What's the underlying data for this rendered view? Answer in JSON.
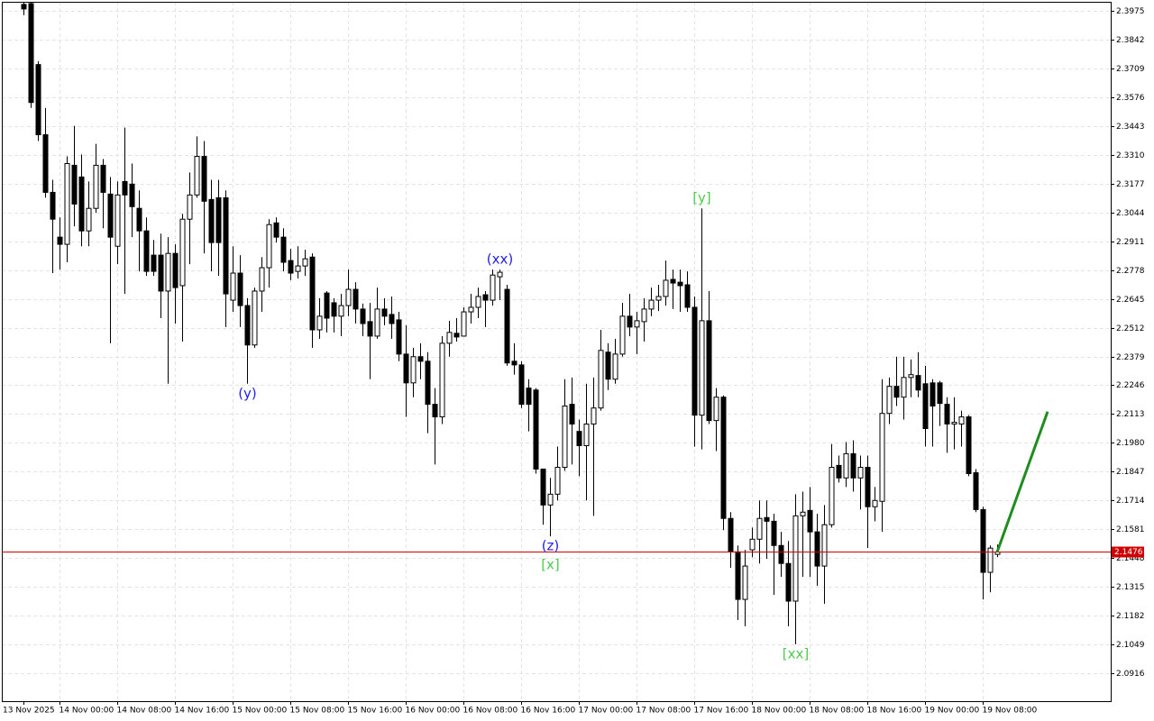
{
  "chart_data": {
    "type": "candlestick",
    "ylim": [
      2.0787,
      2.4017
    ],
    "yticks": [
      2.0916,
      2.1049,
      2.1182,
      2.1315,
      2.1448,
      2.1581,
      2.1714,
      2.1847,
      {
        "value": 2.198,
        "label": "2.1980"
      },
      2.2113,
      2.2246,
      2.2379,
      2.2512,
      2.2645,
      2.2778,
      2.2911,
      2.3044,
      2.3177,
      {
        "value": 2.331,
        "label": "2.3310"
      },
      2.3443,
      2.3576,
      2.3709,
      2.3842,
      2.3975
    ],
    "xticks": [
      {
        "value": 0,
        "label": "13 Nov 2025"
      },
      {
        "value": 5,
        "label": "14 Nov 00:00"
      },
      {
        "value": 13,
        "label": "14 Nov 08:00"
      },
      {
        "value": 21,
        "label": "14 Nov 16:00"
      },
      {
        "value": 29,
        "label": "15 Nov 00:00"
      },
      {
        "value": 37,
        "label": "15 Nov 08:00"
      },
      {
        "value": 45,
        "label": "15 Nov 16:00"
      },
      {
        "value": 53,
        "label": "16 Nov 00:00"
      },
      {
        "value": 61,
        "label": "16 Nov 08:00"
      },
      {
        "value": 69,
        "label": "16 Nov 16:00"
      },
      {
        "value": 77,
        "label": "17 Nov 00:00"
      },
      {
        "value": 85,
        "label": "17 Nov 08:00"
      },
      {
        "value": 93,
        "label": "17 Nov 16:00"
      },
      {
        "value": 101,
        "label": "18 Nov 00:00"
      },
      {
        "value": 109,
        "label": "18 Nov 08:00"
      },
      {
        "value": 117,
        "label": "18 Nov 16:00"
      },
      {
        "value": 125,
        "label": "19 Nov 00:00"
      },
      {
        "value": 133,
        "label": "19 Nov 08:00"
      }
    ],
    "grid": true,
    "up_color": "#ffffff",
    "down_color": "#000000",
    "open": [
      2.4005,
      2.4009,
      2.3727,
      2.3403,
      2.3137,
      2.293,
      2.2897,
      2.3262,
      2.3208,
      2.2959,
      2.3063,
      2.3262,
      2.3129,
      2.2888,
      2.3187,
      2.3175,
      2.3063,
      2.2959,
      2.2847,
      2.2847,
      2.2681,
      2.2855,
      2.2706,
      2.3013,
      2.3125,
      2.3303,
      2.3104,
      2.3112,
      2.3112,
      2.2639,
      2.2764,
      2.2614,
      2.2432,
      2.2681,
      2.2789,
      2.2996,
      2.293,
      2.2822,
      2.2772,
      2.2797,
      2.2838,
      2.2502,
      2.2672,
      2.2627,
      2.2565,
      2.2614,
      2.2689,
      2.2598,
      2.254,
      2.2473,
      2.2598,
      2.2573,
      2.2548,
      2.239,
      2.2257,
      2.2378,
      2.2357,
      2.2158,
      2.21,
      2.244,
      2.2486,
      2.2473,
      2.2585,
      2.2606,
      2.2664,
      2.2639,
      2.2747,
      2.2689,
      2.2357,
      2.234,
      2.2233,
      2.2224,
      2.1859,
      2.1693,
      2.1743,
      2.1867,
      2.2158,
      2.2033,
      2.1967,
      2.2067,
      2.2141,
      2.2399,
      2.2274,
      2.239,
      2.2565,
      2.2515,
      2.254,
      2.2598,
      2.2639,
      2.2656,
      2.2735,
      2.2722,
      2.271,
      2.2606,
      2.2108,
      2.2544,
      2.2083,
      2.2191,
      2.1631,
      2.1477,
      2.1257,
      2.1486,
      2.1535,
      2.1635,
      2.1618,
      2.1506,
      2.1423,
      2.1249,
      2.1643,
      2.1668,
      2.1569,
      2.1411,
      2.1602,
      2.1876,
      2.1818,
      2.193,
      2.1818,
      2.1867,
      2.1685,
      2.171,
      2.2116,
      2.2241,
      2.2191,
      2.2282,
      2.2291,
      2.2253,
      2.2257,
      2.2257,
      2.2158,
      2.2067,
      2.2067,
      2.21,
      2.1842,
      2.1672,
      2.1382,
      2.1465
    ],
    "high": [
      2.4017,
      2.4017,
      2.3743,
      2.3527,
      2.3195,
      2.3021,
      2.3303,
      2.3444,
      2.3312,
      2.3187,
      2.3361,
      2.3291,
      2.3208,
      2.3187,
      2.3436,
      2.327,
      2.3146,
      2.3021,
      2.2917,
      2.2946,
      2.293,
      2.2897,
      2.3038,
      2.3229,
      2.3395,
      2.3374,
      2.3195,
      2.3195,
      2.3146,
      2.2888,
      2.2847,
      2.2648,
      2.2697,
      2.2838,
      2.3013,
      2.3021,
      2.2971,
      2.2876,
      2.2888,
      2.2872,
      2.2855,
      2.2648,
      2.2681,
      2.2648,
      2.2668,
      2.278,
      2.2722,
      2.2623,
      2.2627,
      2.2697,
      2.2648,
      2.2656,
      2.2585,
      2.2523,
      2.2419,
      2.244,
      2.2399,
      2.2233,
      2.2473,
      2.2544,
      2.2556,
      2.2606,
      2.2668,
      2.2697,
      2.2681,
      2.278,
      2.278,
      2.271,
      2.244,
      2.2357,
      2.2274,
      2.2233,
      2.1859,
      2.1818,
      2.1963,
      2.2274,
      2.2282,
      2.2087,
      2.2253,
      2.2282,
      2.2502,
      2.244,
      2.2461,
      2.2627,
      2.2668,
      2.2585,
      2.2648,
      2.2697,
      2.271,
      2.2822,
      2.278,
      2.278,
      2.2772,
      2.2656,
      2.3063,
      2.2681,
      2.2233,
      2.2199,
      2.166,
      2.1506,
      2.1486,
      2.1589,
      2.1714,
      2.1714,
      2.1652,
      2.1569,
      2.1527,
      2.1743,
      2.1755,
      2.1776,
      2.1652,
      2.1693,
      2.1975,
      2.1921,
      2.1984,
      2.1992,
      2.1921,
      2.1921,
      2.1776,
      2.2274,
      2.2282,
      2.2378,
      2.2378,
      2.2365,
      2.2399,
      2.2336,
      2.2274,
      2.2266,
      2.2191,
      2.2191,
      2.2129,
      2.2108,
      2.1859,
      2.1685,
      2.1506,
      2.151
    ],
    "low": [
      2.3955,
      2.3527,
      2.3374,
      2.3112,
      2.2764,
      2.278,
      2.2814,
      2.298,
      2.2888,
      2.2888,
      2.3042,
      2.2971,
      2.244,
      2.2805,
      2.2668,
      2.293,
      2.2772,
      2.2751,
      2.2751,
      2.2556,
      2.2253,
      2.2531,
      2.2448,
      2.2805,
      2.3112,
      2.2855,
      2.2772,
      2.2751,
      2.2515,
      2.2585,
      2.2515,
      2.2253,
      2.2419,
      2.2585,
      2.2697,
      2.2905,
      2.2772,
      2.2731,
      2.2739,
      2.2751,
      2.2419,
      2.2461,
      2.249,
      2.249,
      2.2473,
      2.2565,
      2.2531,
      2.2473,
      2.2274,
      2.2461,
      2.2523,
      2.2461,
      2.2357,
      2.21,
      2.2191,
      2.2274,
      2.2025,
      2.188,
      2.2067,
      2.2378,
      2.2448,
      2.2473,
      2.2531,
      2.2556,
      2.2515,
      2.2614,
      2.2639,
      2.2336,
      2.2295,
      2.2141,
      2.2033,
      2.1838,
      2.1602,
      2.1548,
      2.1714,
      2.1851,
      2.188,
      2.1826,
      2.1714,
      2.1643,
      2.2129,
      2.2224,
      2.2253,
      2.2378,
      2.2473,
      2.239,
      2.2448,
      2.2565,
      2.2589,
      2.2614,
      2.2598,
      2.2585,
      2.2585,
      2.1963,
      2.195,
      2.2067,
      2.1942,
      2.1577,
      2.1403,
      2.1162,
      2.1133,
      2.1452,
      2.1423,
      2.1444,
      2.1278,
      2.1361,
      2.1133,
      2.105,
      2.1361,
      2.1361,
      2.132,
      2.1237,
      2.1589,
      2.1797,
      2.1776,
      2.1755,
      2.1672,
      2.1494,
      2.1618,
      2.1569,
      2.2067,
      2.215,
      2.2087,
      2.2191,
      2.2191,
      2.1963,
      2.1963,
      2.2058,
      2.1934,
      2.195,
      2.1963,
      2.1826,
      2.166,
      2.1257,
      2.129,
      2.1452
    ],
    "close": [
      2.3984,
      2.3552,
      2.3403,
      2.3137,
      2.3013,
      2.2897,
      2.327,
      2.3083,
      2.2959,
      2.3063,
      2.3262,
      2.3137,
      2.293,
      2.3125,
      2.3125,
      2.3071,
      2.2959,
      2.2772,
      2.2772,
      2.2681,
      2.2855,
      2.2697,
      2.3013,
      2.3125,
      2.3303,
      2.3096,
      2.2905,
      2.2905,
      2.2668,
      2.2764,
      2.2614,
      2.2432,
      2.2681,
      2.2789,
      2.2988,
      2.293,
      2.2814,
      2.2764,
      2.2797,
      2.283,
      2.2502,
      2.2565,
      2.2556,
      2.2565,
      2.2614,
      2.2689,
      2.2598,
      2.2531,
      2.2473,
      2.2598,
      2.2565,
      2.2531,
      2.239,
      2.2257,
      2.2378,
      2.2357,
      2.2158,
      2.21,
      2.244,
      2.249,
      2.2469,
      2.2585,
      2.2606,
      2.2656,
      2.2639,
      2.2755,
      2.2768,
      2.2349,
      2.234,
      2.2158,
      2.2158,
      2.1859,
      2.1693,
      2.1743,
      2.1867,
      2.215,
      2.2067,
      2.1967,
      2.2067,
      2.2141,
      2.2407,
      2.2274,
      2.239,
      2.2565,
      2.2515,
      2.2544,
      2.2598,
      2.2639,
      2.2656,
      2.2731,
      2.2718,
      2.2706,
      2.2606,
      2.2108,
      2.2544,
      2.2083,
      2.2191,
      2.1631,
      2.1477,
      2.1257,
      2.1411,
      2.1535,
      2.1631,
      2.1618,
      2.1506,
      2.1423,
      2.1249,
      2.1643,
      2.166,
      2.1569,
      2.1411,
      2.1602,
      2.1867,
      2.1818,
      2.193,
      2.1818,
      2.1867,
      2.1685,
      2.1714,
      2.2116,
      2.2241,
      2.2191,
      2.2282,
      2.2295,
      2.2224,
      2.2046,
      2.215,
      2.2162,
      2.2067,
      2.2075,
      2.21,
      2.1838,
      2.1672,
      2.1382,
      2.1494,
      2.1476
    ],
    "current_price": 2.1476,
    "current_price_color": "#d00000",
    "forecast": {
      "x": [
        135,
        142
      ],
      "values": [
        2.1476,
        2.2124
      ],
      "color": "#1e8c1e"
    },
    "annotations": [
      {
        "text": "(y)",
        "index": 31,
        "position": "below",
        "color": "#1f1fe6"
      },
      {
        "text": "(xx)",
        "index": 66,
        "position": "above",
        "color": "#1f1fe6"
      },
      {
        "text": "(z)",
        "index": 73,
        "position": "below",
        "color": "#1f1fe6"
      },
      {
        "text": "[x]",
        "index": 73,
        "position": "below",
        "color": "#4ccc4c"
      },
      {
        "text": "[y]",
        "index": 94,
        "position": "above",
        "color": "#4ccc4c"
      },
      {
        "text": "[xx]",
        "index": 107,
        "position": "below",
        "color": "#4ccc4c"
      }
    ]
  }
}
